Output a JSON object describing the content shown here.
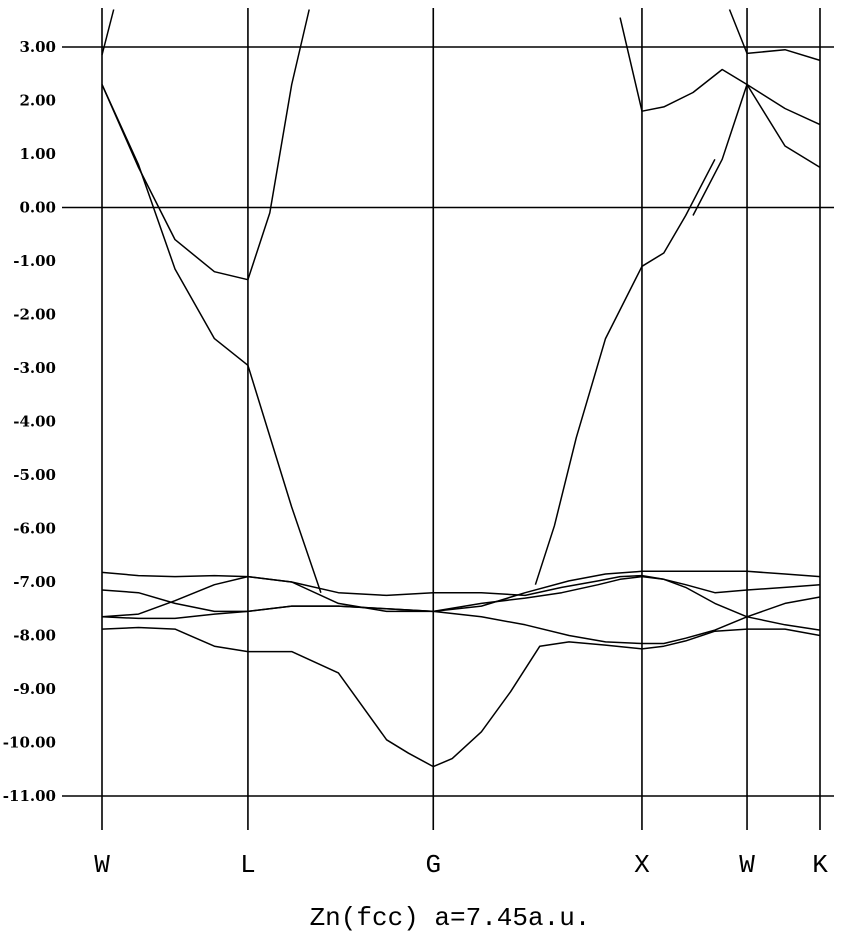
{
  "chart_data": {
    "type": "line",
    "title": "Zn(fcc) a=7.45a.u.",
    "xlabel": "",
    "ylabel": "",
    "ylim": [
      -11.0,
      3.0
    ],
    "yticks": [
      3.0,
      2.0,
      1.0,
      0.0,
      -1.0,
      -2.0,
      -3.0,
      -4.0,
      -5.0,
      -6.0,
      -7.0,
      -8.0,
      -9.0,
      -10.0,
      -11.0
    ],
    "ytick_labels": [
      "3.00",
      "2.00",
      "1.00",
      "0.00",
      "-1.00",
      "-2.00",
      "-3.00",
      "-4.00",
      "-5.00",
      "-6.00",
      "-7.00",
      "-8.00",
      "-9.00",
      "-10.00",
      "-11.00"
    ],
    "kpath_labels": [
      "W",
      "L",
      "G",
      "X",
      "W",
      "K"
    ],
    "kpath_positions": [
      0.0,
      1.0,
      2.27,
      3.7,
      4.42,
      4.92
    ],
    "grid": false,
    "fermi_level": 0.0,
    "series": [
      {
        "x": [
          0.0,
          0.08
        ],
        "y": [
          2.85,
          3.7
        ]
      },
      {
        "x": [
          0.0,
          0.25,
          0.5,
          0.77,
          1.0,
          1.3,
          1.5
        ],
        "y": [
          2.3,
          0.8,
          -1.15,
          -2.45,
          -2.95,
          -5.6,
          -7.2
        ]
      },
      {
        "x": [
          0.0,
          0.25,
          0.5,
          0.77,
          1.0,
          1.15,
          1.3,
          1.42
        ],
        "y": [
          2.3,
          0.75,
          -0.6,
          -1.2,
          -1.35,
          -0.1,
          2.3,
          3.7
        ]
      },
      {
        "x": [
          3.55,
          3.7,
          3.85,
          4.05,
          4.25,
          4.42,
          4.68,
          4.92
        ],
        "y": [
          3.55,
          1.8,
          1.88,
          2.15,
          2.58,
          2.3,
          1.85,
          1.55
        ]
      },
      {
        "x": [
          4.05,
          4.25,
          4.42,
          4.68,
          4.92
        ],
        "y": [
          -0.15,
          0.9,
          2.3,
          1.15,
          0.75
        ]
      },
      {
        "x": [
          4.3,
          4.42,
          4.68,
          4.92
        ],
        "y": [
          3.7,
          2.88,
          2.95,
          2.75
        ]
      },
      {
        "x": [
          0.0,
          0.25,
          0.5,
          0.77,
          1.0,
          1.3,
          1.62,
          1.95,
          2.27,
          2.6,
          2.9,
          3.15,
          3.4,
          3.55,
          3.7,
          3.85,
          4.0,
          4.2,
          4.42,
          4.68,
          4.92
        ],
        "y": [
          -7.65,
          -7.6,
          -7.35,
          -7.05,
          -6.9,
          -7.0,
          -7.2,
          -7.25,
          -7.2,
          -7.2,
          -7.25,
          -7.1,
          -6.98,
          -6.9,
          -6.88,
          -6.95,
          -7.05,
          -7.2,
          -7.15,
          -7.1,
          -7.05
        ]
      },
      {
        "x": [
          0.0,
          0.25,
          0.5,
          0.77,
          1.0,
          1.3,
          1.62,
          1.95,
          2.27,
          2.6,
          2.9,
          3.2,
          3.45,
          3.7,
          4.0,
          4.2,
          4.42,
          4.68,
          4.92
        ],
        "y": [
          -6.82,
          -6.88,
          -6.9,
          -6.88,
          -6.9,
          -7.0,
          -7.4,
          -7.55,
          -7.55,
          -7.45,
          -7.2,
          -6.98,
          -6.85,
          -6.8,
          -6.8,
          -6.8,
          -6.8,
          -6.85,
          -6.9
        ]
      },
      {
        "x": [
          0.0,
          0.25,
          0.5,
          0.77,
          1.0,
          1.3,
          1.62,
          1.95,
          2.27,
          2.6,
          2.9,
          3.15,
          3.4,
          3.55,
          3.7,
          3.85,
          4.0,
          4.2,
          4.42,
          4.68,
          4.92
        ],
        "y": [
          -7.15,
          -7.2,
          -7.4,
          -7.55,
          -7.55,
          -7.45,
          -7.45,
          -7.5,
          -7.55,
          -7.4,
          -7.3,
          -7.2,
          -7.05,
          -6.95,
          -6.9,
          -6.95,
          -7.1,
          -7.4,
          -7.65,
          -7.4,
          -7.28
        ]
      },
      {
        "x": [
          0.0,
          0.25,
          0.5,
          0.77,
          1.0,
          1.3,
          1.62,
          1.95,
          2.27,
          2.6,
          2.9,
          3.2,
          3.45,
          3.7,
          3.85,
          4.0,
          4.2,
          4.42,
          4.68,
          4.92
        ],
        "y": [
          -7.65,
          -7.68,
          -7.68,
          -7.6,
          -7.55,
          -7.45,
          -7.45,
          -7.5,
          -7.55,
          -7.65,
          -7.8,
          -8.0,
          -8.12,
          -8.15,
          -8.15,
          -8.05,
          -7.9,
          -7.65,
          -7.8,
          -7.9
        ]
      },
      {
        "x": [
          0.0,
          0.25,
          0.5,
          0.77,
          1.0,
          1.3,
          1.62,
          1.95,
          2.1,
          2.27,
          2.4,
          2.6,
          2.8,
          3.0,
          3.2,
          3.45,
          3.7,
          3.85,
          4.0,
          4.2,
          4.42,
          4.68,
          4.92
        ],
        "y": [
          -7.88,
          -7.85,
          -7.88,
          -8.2,
          -8.3,
          -8.3,
          -8.7,
          -9.95,
          -10.2,
          -10.45,
          -10.3,
          -9.8,
          -9.05,
          -8.2,
          -8.12,
          -8.18,
          -8.25,
          -8.2,
          -8.1,
          -7.92,
          -7.88,
          -7.88,
          -8.0
        ]
      },
      {
        "x": [
          2.97,
          3.1,
          3.25,
          3.45,
          3.7,
          3.85,
          4.0,
          4.2
        ],
        "y": [
          -7.05,
          -5.95,
          -4.3,
          -2.45,
          -1.1,
          -0.85,
          -0.15,
          0.9
        ]
      }
    ]
  }
}
